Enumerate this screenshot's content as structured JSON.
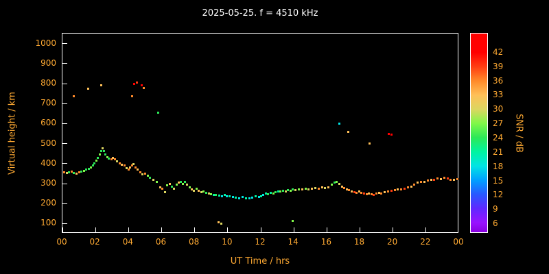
{
  "title": "2025-05-25. f = 4510 kHz",
  "colors": {
    "background": "#000000",
    "axis_text": "#ffaa33",
    "title_text": "#ffffff",
    "box_border": "#ffffff",
    "tick_mark": "#ffffff"
  },
  "chart_data": {
    "type": "scatter",
    "title": "2025-05-25. f = 4510 kHz",
    "xlabel": "UT Time / hrs",
    "ylabel": "Virtual height / km",
    "colorbar_label": "SNR / dB",
    "grid": false,
    "xlim": [
      0,
      24
    ],
    "ylim": [
      50,
      1050
    ],
    "x_ticks": [
      {
        "v": 0,
        "label": "00"
      },
      {
        "v": 2,
        "label": "02"
      },
      {
        "v": 4,
        "label": "04"
      },
      {
        "v": 6,
        "label": "06"
      },
      {
        "v": 8,
        "label": "08"
      },
      {
        "v": 10,
        "label": "10"
      },
      {
        "v": 12,
        "label": "12"
      },
      {
        "v": 14,
        "label": "14"
      },
      {
        "v": 16,
        "label": "16"
      },
      {
        "v": 18,
        "label": "18"
      },
      {
        "v": 20,
        "label": "20"
      },
      {
        "v": 22,
        "label": "22"
      },
      {
        "v": 24,
        "label": "00"
      }
    ],
    "y_ticks": [
      100,
      200,
      300,
      400,
      500,
      600,
      700,
      800,
      900,
      1000
    ],
    "colorbar": {
      "range": [
        4,
        46
      ],
      "ticks": [
        6,
        9,
        12,
        15,
        18,
        21,
        24,
        27,
        30,
        33,
        36,
        39,
        42
      ],
      "stops": [
        {
          "v": 4,
          "c": "#8800e0"
        },
        {
          "v": 6,
          "c": "#9912ff"
        },
        {
          "v": 9,
          "c": "#6028ff"
        },
        {
          "v": 12,
          "c": "#2858ff"
        },
        {
          "v": 15,
          "c": "#00a0ff"
        },
        {
          "v": 18,
          "c": "#00e4e4"
        },
        {
          "v": 21,
          "c": "#00f4a0"
        },
        {
          "v": 24,
          "c": "#2ce858"
        },
        {
          "v": 27,
          "c": "#80f848"
        },
        {
          "v": 30,
          "c": "#dcd660"
        },
        {
          "v": 33,
          "c": "#ffc058"
        },
        {
          "v": 36,
          "c": "#ff8a2a"
        },
        {
          "v": 39,
          "c": "#ff3d12"
        },
        {
          "v": 42,
          "c": "#ff0000"
        },
        {
          "v": 46,
          "c": "#ff0000"
        }
      ]
    },
    "points": [
      [
        0.1,
        355,
        36
      ],
      [
        0.25,
        352,
        30
      ],
      [
        0.4,
        356,
        24
      ],
      [
        0.55,
        360,
        36
      ],
      [
        0.7,
        354,
        24
      ],
      [
        0.85,
        350,
        33
      ],
      [
        1.0,
        356,
        36
      ],
      [
        1.15,
        360,
        24
      ],
      [
        1.3,
        364,
        27
      ],
      [
        1.45,
        370,
        24
      ],
      [
        1.6,
        374,
        24
      ],
      [
        1.72,
        382,
        27
      ],
      [
        1.85,
        390,
        24
      ],
      [
        1.95,
        400,
        24
      ],
      [
        2.05,
        414,
        27
      ],
      [
        2.15,
        428,
        24
      ],
      [
        2.25,
        444,
        27
      ],
      [
        2.35,
        462,
        24
      ],
      [
        2.42,
        475,
        30
      ],
      [
        2.5,
        462,
        24
      ],
      [
        2.6,
        446,
        24
      ],
      [
        2.7,
        432,
        27
      ],
      [
        2.82,
        424,
        24
      ],
      [
        2.95,
        420,
        36
      ],
      [
        3.05,
        430,
        33
      ],
      [
        3.18,
        420,
        36
      ],
      [
        3.3,
        410,
        30
      ],
      [
        3.45,
        402,
        36
      ],
      [
        3.6,
        395,
        33
      ],
      [
        3.75,
        390,
        36
      ],
      [
        3.88,
        376,
        30
      ],
      [
        4.0,
        370,
        36
      ],
      [
        4.1,
        380,
        33
      ],
      [
        4.2,
        390,
        36
      ],
      [
        4.3,
        396,
        30
      ],
      [
        4.42,
        382,
        36
      ],
      [
        4.55,
        370,
        33
      ],
      [
        4.7,
        356,
        36
      ],
      [
        4.85,
        345,
        30
      ],
      [
        5.0,
        350,
        36
      ],
      [
        5.15,
        340,
        27
      ],
      [
        5.3,
        330,
        24
      ],
      [
        5.5,
        320,
        30
      ],
      [
        5.7,
        308,
        27
      ],
      [
        5.9,
        282,
        33
      ],
      [
        6.05,
        274,
        36
      ],
      [
        6.2,
        256,
        30
      ],
      [
        6.35,
        290,
        27
      ],
      [
        6.5,
        300,
        33
      ],
      [
        6.62,
        284,
        24
      ],
      [
        6.75,
        274,
        30
      ],
      [
        6.9,
        294,
        27
      ],
      [
        7.02,
        304,
        33
      ],
      [
        7.15,
        310,
        24
      ],
      [
        7.28,
        300,
        27
      ],
      [
        7.4,
        310,
        24
      ],
      [
        7.55,
        296,
        30
      ],
      [
        7.7,
        282,
        27
      ],
      [
        7.82,
        270,
        33
      ],
      [
        7.95,
        264,
        30
      ],
      [
        8.1,
        274,
        27
      ],
      [
        8.25,
        264,
        33
      ],
      [
        8.4,
        256,
        30
      ],
      [
        8.55,
        260,
        27
      ],
      [
        8.7,
        254,
        24
      ],
      [
        8.85,
        250,
        30
      ],
      [
        9.0,
        248,
        27
      ],
      [
        9.15,
        245,
        21
      ],
      [
        9.3,
        242,
        24
      ],
      [
        9.5,
        240,
        21
      ],
      [
        9.65,
        238,
        18
      ],
      [
        9.8,
        242,
        21
      ],
      [
        9.95,
        238,
        18
      ],
      [
        10.1,
        235,
        21
      ],
      [
        10.3,
        232,
        18
      ],
      [
        10.5,
        230,
        21
      ],
      [
        10.7,
        228,
        18
      ],
      [
        10.9,
        232,
        18
      ],
      [
        11.1,
        228,
        21
      ],
      [
        11.3,
        225,
        18
      ],
      [
        11.5,
        230,
        18
      ],
      [
        11.7,
        235,
        21
      ],
      [
        11.9,
        232,
        18
      ],
      [
        12.0,
        238,
        21
      ],
      [
        12.15,
        245,
        18
      ],
      [
        12.3,
        250,
        21
      ],
      [
        12.45,
        248,
        24
      ],
      [
        12.6,
        255,
        21
      ],
      [
        12.75,
        252,
        27
      ],
      [
        12.9,
        258,
        24
      ],
      [
        13.05,
        262,
        21
      ],
      [
        13.2,
        260,
        27
      ],
      [
        13.35,
        265,
        24
      ],
      [
        13.5,
        262,
        30
      ],
      [
        13.65,
        268,
        24
      ],
      [
        13.8,
        265,
        27
      ],
      [
        13.95,
        270,
        24
      ],
      [
        14.1,
        268,
        30
      ],
      [
        14.3,
        272,
        27
      ],
      [
        14.5,
        270,
        33
      ],
      [
        14.7,
        275,
        27
      ],
      [
        14.9,
        272,
        30
      ],
      [
        15.1,
        275,
        33
      ],
      [
        15.3,
        278,
        30
      ],
      [
        15.5,
        275,
        36
      ],
      [
        15.7,
        280,
        33
      ],
      [
        15.9,
        278,
        30
      ],
      [
        16.1,
        282,
        33
      ],
      [
        16.3,
        295,
        27
      ],
      [
        16.45,
        305,
        24
      ],
      [
        16.6,
        310,
        27
      ],
      [
        16.75,
        300,
        30
      ],
      [
        16.9,
        285,
        33
      ],
      [
        17.05,
        278,
        36
      ],
      [
        17.2,
        272,
        33
      ],
      [
        17.35,
        268,
        36
      ],
      [
        17.5,
        262,
        33
      ],
      [
        17.65,
        258,
        39
      ],
      [
        17.8,
        255,
        36
      ],
      [
        17.95,
        260,
        33
      ],
      [
        18.1,
        255,
        36
      ],
      [
        18.25,
        250,
        39
      ],
      [
        18.4,
        248,
        36
      ],
      [
        18.55,
        252,
        33
      ],
      [
        18.7,
        248,
        36
      ],
      [
        18.85,
        245,
        39
      ],
      [
        19.0,
        250,
        36
      ],
      [
        19.15,
        255,
        33
      ],
      [
        19.3,
        252,
        36
      ],
      [
        19.5,
        258,
        33
      ],
      [
        19.7,
        262,
        36
      ],
      [
        19.9,
        265,
        39
      ],
      [
        20.1,
        268,
        36
      ],
      [
        20.3,
        272,
        33
      ],
      [
        20.5,
        270,
        36
      ],
      [
        20.7,
        275,
        39
      ],
      [
        20.9,
        280,
        36
      ],
      [
        21.1,
        285,
        33
      ],
      [
        21.3,
        295,
        36
      ],
      [
        21.5,
        305,
        33
      ],
      [
        21.7,
        310,
        36
      ],
      [
        21.9,
        308,
        33
      ],
      [
        22.1,
        315,
        36
      ],
      [
        22.3,
        320,
        33
      ],
      [
        22.5,
        318,
        39
      ],
      [
        22.7,
        325,
        36
      ],
      [
        22.9,
        322,
        33
      ],
      [
        23.1,
        328,
        36
      ],
      [
        23.3,
        325,
        39
      ],
      [
        23.5,
        320,
        36
      ],
      [
        23.7,
        318,
        33
      ],
      [
        23.9,
        322,
        36
      ],
      [
        0.7,
        735,
        36
      ],
      [
        1.55,
        775,
        33
      ],
      [
        2.35,
        790,
        33
      ],
      [
        4.2,
        735,
        36
      ],
      [
        4.35,
        800,
        42
      ],
      [
        4.5,
        805,
        39
      ],
      [
        4.8,
        790,
        42
      ],
      [
        4.9,
        778,
        36
      ],
      [
        5.8,
        655,
        24
      ],
      [
        16.75,
        600,
        18
      ],
      [
        17.3,
        560,
        33
      ],
      [
        18.6,
        500,
        33
      ],
      [
        19.75,
        550,
        42
      ],
      [
        19.9,
        545,
        42
      ],
      [
        9.45,
        105,
        33
      ],
      [
        9.6,
        100,
        30
      ],
      [
        13.95,
        115,
        27
      ]
    ]
  }
}
